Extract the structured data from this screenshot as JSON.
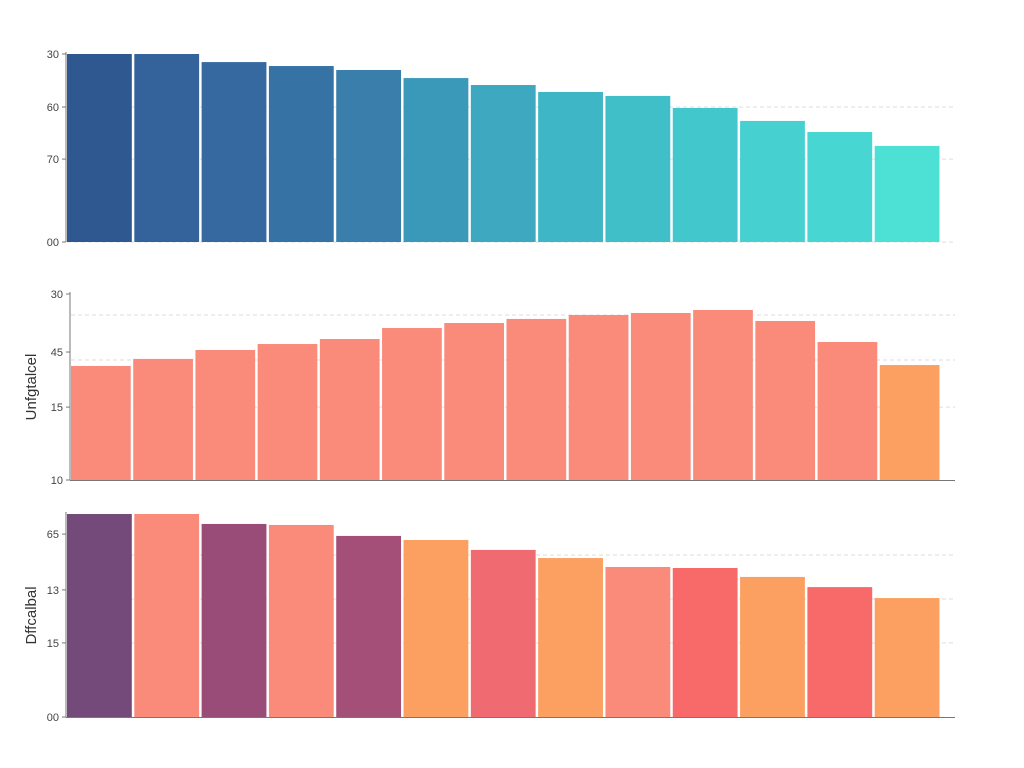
{
  "chart_data": [
    {
      "type": "bar",
      "ylabel": "",
      "ylim": [
        0,
        100
      ],
      "grid": "dashed horizontal",
      "ticks": [
        {
          "label": "30",
          "value": 100
        },
        {
          "label": "60",
          "value": 71.8
        },
        {
          "label": "70",
          "value": 44.1
        },
        {
          "label": "00",
          "value": 0
        }
      ],
      "gridlines": [
        71.8,
        44.1,
        0
      ],
      "values": [
        100,
        100,
        95.7,
        93.6,
        91.5,
        87.2,
        83.5,
        79.8,
        77.7,
        71.3,
        64.4,
        58.5,
        51.1
      ],
      "colors": [
        "#2f5890",
        "#33639a",
        "#3569a0",
        "#3672a4",
        "#3a7fab",
        "#3a98b8",
        "#3ea8c0",
        "#3fb6c6",
        "#40bfc9",
        "#42c8cc",
        "#46d0d0",
        "#48d6d2",
        "#4de0d4"
      ]
    },
    {
      "type": "bar",
      "ylabel": "Unfgtalcel",
      "ylim": [
        0,
        100
      ],
      "grid": "dashed horizontal",
      "ticks": [
        {
          "label": "30",
          "value": 100
        },
        {
          "label": "45",
          "value": 68.8
        },
        {
          "label": "15",
          "value": 39.2
        },
        {
          "label": "10",
          "value": 0
        }
      ],
      "gridlines": [
        88.7,
        64.5,
        39.2
      ],
      "values": [
        61.3,
        65.1,
        69.9,
        73.1,
        75.8,
        81.7,
        84.4,
        86.6,
        88.7,
        89.8,
        91.4,
        85.5,
        74.2,
        61.8
      ],
      "colors": [
        "#fa8a7a",
        "#fa8a7a",
        "#fa8a7a",
        "#fa8a7a",
        "#fa8a7a",
        "#fa8a7a",
        "#fa8a7a",
        "#fa8a7a",
        "#fa8a7a",
        "#fa8a7a",
        "#fa8a7a",
        "#fa8a7a",
        "#fa8a7a",
        "#fba060"
      ]
    },
    {
      "type": "bar",
      "ylabel": "Dffcalbal",
      "ylim": [
        0,
        100
      ],
      "grid": "dashed horizontal",
      "ticks": [
        {
          "label": "65",
          "value": 90.1
        },
        {
          "label": "13",
          "value": 62.6
        },
        {
          "label": "15",
          "value": 36.5
        },
        {
          "label": "00",
          "value": 0
        }
      ],
      "gridlines": [
        79.8,
        58.1,
        36.5
      ],
      "values": [
        100,
        100,
        95.1,
        94.6,
        89.2,
        87.2,
        82.3,
        78.3,
        73.9,
        73.4,
        69.0,
        64.0,
        58.6
      ],
      "colors": [
        "#744a7a",
        "#fa8a7a",
        "#9a4c78",
        "#fa8a7a",
        "#a44f78",
        "#fba060",
        "#f06a72",
        "#fba060",
        "#fa8a7a",
        "#f86a6a",
        "#fba060",
        "#f86a6a",
        "#fba060"
      ]
    }
  ]
}
